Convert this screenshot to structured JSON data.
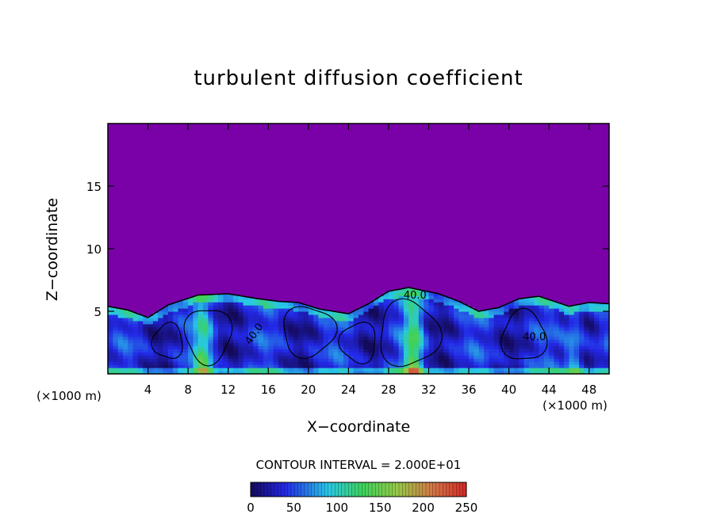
{
  "chart_data": {
    "type": "heatmap",
    "title": "turbulent diffusion coefficient",
    "xlabel": "X−coordinate",
    "ylabel": "Z−coordinate",
    "x_unit_label": "(×1000 m)",
    "z_unit_label": "(×1000 m)",
    "xlim": [
      0,
      50
    ],
    "ylim": [
      0,
      20
    ],
    "x_ticks": [
      4,
      8,
      12,
      16,
      20,
      24,
      28,
      32,
      36,
      40,
      44,
      48
    ],
    "y_ticks": [
      5,
      10,
      15
    ],
    "contour_interval_text": "CONTOUR INTERVAL = 2.000E+01",
    "contour_labels": [
      "40.0",
      "40.0",
      "40.0"
    ],
    "colorbar": {
      "min": 0,
      "max": 250,
      "tick_values": [
        0,
        50,
        100,
        150,
        200,
        250
      ],
      "tick_labels": [
        "0",
        "50",
        "100",
        "150",
        "200",
        "250"
      ]
    },
    "background_color": "#7a00a8",
    "mixed_layer_top_km": [
      5.4,
      5.1,
      4.5,
      5.5,
      6.3,
      6.4,
      6.0,
      5.8,
      5.7,
      5.2,
      4.8,
      5.6,
      6.6,
      6.9,
      6.4,
      5.8,
      5.0,
      5.3,
      6.0,
      6.2,
      5.4,
      5.7,
      5.6
    ],
    "mixed_layer_x_km": [
      0,
      2,
      4,
      6,
      9,
      12,
      15,
      17,
      19,
      21,
      24,
      26,
      28,
      30,
      33,
      35,
      37,
      39,
      41,
      43,
      46,
      48,
      50
    ],
    "updraft_cores_km": [
      {
        "x": 9.5,
        "peak": 130
      },
      {
        "x": 30.5,
        "peak": 160
      },
      {
        "x": 46.5,
        "peak": 90
      }
    ]
  }
}
